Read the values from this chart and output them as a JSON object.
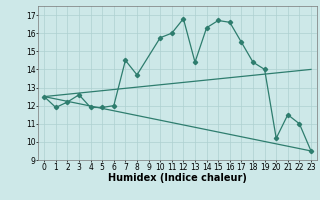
{
  "line1_x": [
    0,
    1,
    2,
    3,
    4,
    5,
    6,
    7,
    8,
    10,
    11,
    12,
    13,
    14,
    15,
    16,
    17,
    18,
    19,
    20,
    21,
    22,
    23
  ],
  "line1_y": [
    12.5,
    11.9,
    12.2,
    12.6,
    11.9,
    11.9,
    12.0,
    14.5,
    13.7,
    15.75,
    16.0,
    16.8,
    14.4,
    16.3,
    16.7,
    16.6,
    15.5,
    14.4,
    14.0,
    10.2,
    11.5,
    11.0,
    9.5
  ],
  "line2_x": [
    0,
    23
  ],
  "line2_y": [
    12.5,
    14.0
  ],
  "line3_x": [
    0,
    23
  ],
  "line3_y": [
    12.5,
    9.5
  ],
  "color": "#2e7d6e",
  "bg_color": "#cde8e8",
  "grid_color": "#aed0d0",
  "xlim": [
    -0.5,
    23.5
  ],
  "ylim": [
    9,
    17.5
  ],
  "yticks": [
    9,
    10,
    11,
    12,
    13,
    14,
    15,
    16,
    17
  ],
  "xticks": [
    0,
    1,
    2,
    3,
    4,
    5,
    6,
    7,
    8,
    9,
    10,
    11,
    12,
    13,
    14,
    15,
    16,
    17,
    18,
    19,
    20,
    21,
    22,
    23
  ],
  "xlabel": "Humidex (Indice chaleur)",
  "xlabel_fontsize": 7,
  "tick_fontsize": 5.5,
  "marker": "D",
  "marker_size": 2.2
}
